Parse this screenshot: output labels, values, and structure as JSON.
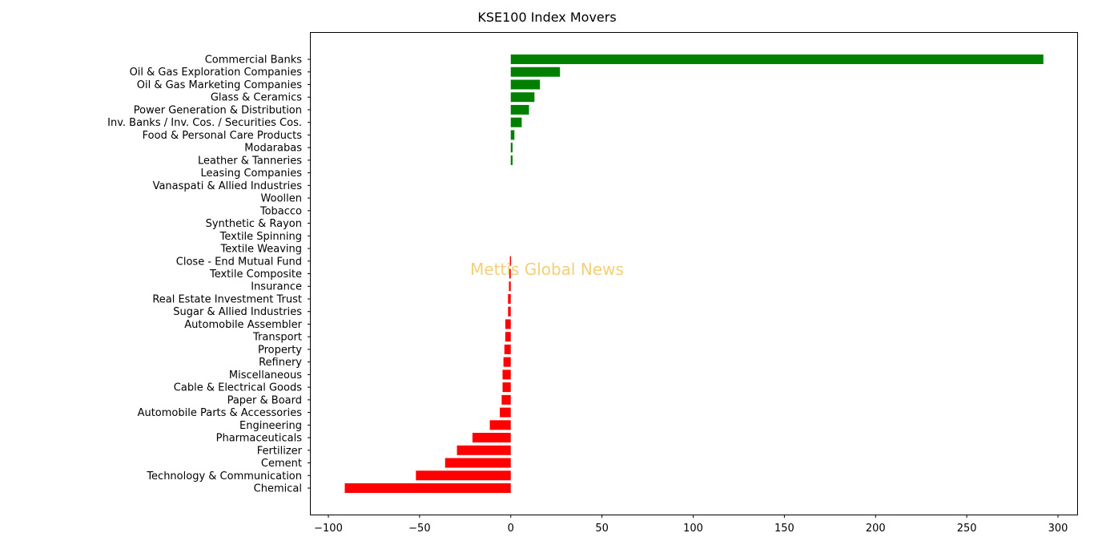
{
  "chart_data": {
    "type": "bar",
    "orientation": "horizontal",
    "title": "KSE100 Index Movers",
    "watermark": "Mettis Global News",
    "xlabel": "",
    "ylabel": "",
    "xlim": [
      -100,
      300
    ],
    "xticks": [
      -100,
      -50,
      0,
      50,
      100,
      150,
      200,
      250,
      300
    ],
    "xtick_labels": [
      "−100",
      "−50",
      "0",
      "50",
      "100",
      "150",
      "200",
      "250",
      "300"
    ],
    "positive_color": "#008000",
    "negative_color": "#ff0000",
    "grid": false,
    "categories": [
      "Commercial Banks",
      "Oil & Gas Exploration Companies",
      "Oil & Gas Marketing Companies",
      "Glass & Ceramics",
      "Power Generation & Distribution",
      "Inv. Banks / Inv. Cos. / Securities Cos.",
      "Food & Personal Care Products",
      "Modarabas",
      "Leather & Tanneries",
      "Leasing Companies",
      "Vanaspati & Allied Industries",
      "Woollen",
      "Tobacco",
      "Synthetic & Rayon",
      "Textile Spinning",
      "Textile Weaving",
      "Close - End Mutual Fund",
      "Textile Composite",
      "Insurance",
      "Real Estate Investment Trust",
      "Sugar & Allied Industries",
      "Automobile Assembler",
      "Transport",
      "Property",
      "Refinery",
      "Miscellaneous",
      "Cable & Electrical Goods",
      "Paper & Board",
      "Automobile Parts & Accessories",
      "Engineering",
      "Pharmaceuticals",
      "Fertilizer",
      "Cement",
      "Technology & Communication",
      "Chemical"
    ],
    "values": [
      292,
      27,
      16,
      13,
      10,
      6,
      2,
      1,
      1,
      0,
      0,
      0,
      0,
      0,
      0,
      0,
      -0.5,
      -0.8,
      -1,
      -1.5,
      -1.5,
      -3,
      -3,
      -3.5,
      -4,
      -4.5,
      -4.5,
      -5,
      -6,
      -11.5,
      -21,
      -29.5,
      -36,
      -52,
      -91
    ]
  }
}
